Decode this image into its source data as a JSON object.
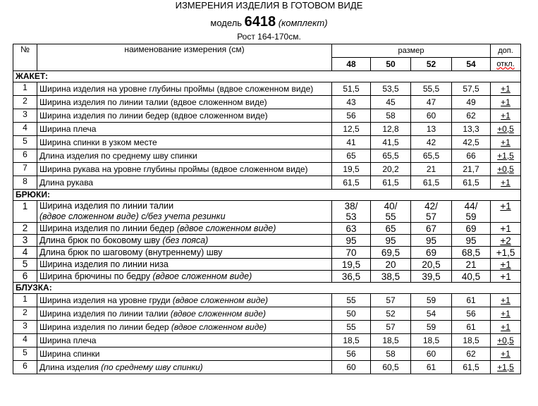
{
  "title": "ИЗМЕРЕНИЯ ИЗДЕЛИЯ В ГОТОВОМ ВИДЕ",
  "model_prefix": "модель",
  "model_number": "6418",
  "model_suffix": "(комплект)",
  "height": "Рост 164-170см.",
  "header": {
    "num": "№",
    "name": "наименование измерения (см)",
    "size": "размер",
    "sizes": [
      "48",
      "50",
      "52",
      "54"
    ],
    "tol1": "доп.",
    "tol2": "откл."
  },
  "sections": [
    {
      "title": "ЖАКЕТ:",
      "rows": [
        {
          "n": "1",
          "name": "Ширина изделия на уровне глубины проймы (вдвое сложенном виде)",
          "v": [
            "51,5",
            "53,5",
            "55,5",
            "57,5"
          ],
          "tol": "+1",
          "tol_underlined": true
        },
        {
          "n": "2",
          "name": "Ширина изделия по линии талии (вдвое сложенном виде)",
          "v": [
            "43",
            "45",
            "47",
            "49"
          ],
          "tol": "+1",
          "tol_underlined": true
        },
        {
          "n": "3",
          "name": "Ширина изделия по линии бедер (вдвое сложенном виде)",
          "v": [
            "56",
            "58",
            "60",
            "62"
          ],
          "tol": "+1",
          "tol_underlined": true
        },
        {
          "n": "4",
          "name": "Ширина плеча",
          "v": [
            "12,5",
            "12,8",
            "13",
            "13,3"
          ],
          "tol": "+0,5",
          "tol_underlined": true
        },
        {
          "n": "5",
          "name": "Ширина спинки в узком месте",
          "v": [
            "41",
            "41,5",
            "42",
            "42,5"
          ],
          "tol": "+1",
          "tol_underlined": true
        },
        {
          "n": "6",
          "name": "Длина изделия по среднему шву спинки",
          "v": [
            "65",
            "65,5",
            "65,5",
            "66"
          ],
          "tol": "+1,5",
          "tol_underlined": true
        },
        {
          "n": "7",
          "name": "Ширина рукава на уровне глубины проймы (вдвое сложенном виде)",
          "v": [
            "19,5",
            "20,2",
            "21",
            "21,7"
          ],
          "tol": "+0,5",
          "tol_underlined": true
        },
        {
          "n": "8",
          "name": "Длина рукава",
          "v": [
            "61,5",
            "61,5",
            "61,5",
            "61,5"
          ],
          "tol": "+1",
          "tol_underlined": true
        }
      ]
    },
    {
      "title": "БРЮКИ:",
      "rows": [
        {
          "n": "1",
          "name": "Ширина изделия по линии талии",
          "name_italic": "(вдвое сложенном виде) с/без учета резинки",
          "v": [
            "38/ 53",
            "40/ 55",
            "42/ 57",
            "44/ 59"
          ],
          "tol": "+1",
          "tol_underlined": true
        },
        {
          "n": "2",
          "name": "Ширина изделия по линии бедер",
          "name_italic": "(вдвое сложенном виде)",
          "v": [
            "63",
            "65",
            "67",
            "69"
          ],
          "tol": "+1",
          "tol_underlined": false
        },
        {
          "n": "3",
          "name": "Длина брюк по боковому шву",
          "name_italic": "(без пояса)",
          "v": [
            "95",
            "95",
            "95",
            "95"
          ],
          "tol": "+2",
          "tol_underlined": true
        },
        {
          "n": "4",
          "name": "Длина брюк по шаговому (внутреннему) шву",
          "v": [
            "70",
            "69,5",
            "69",
            "68,5"
          ],
          "tol": "+1,5",
          "tol_underlined": false
        },
        {
          "n": "5",
          "name": "Ширина изделия по линии низа",
          "v": [
            "19,5",
            "20",
            "20,5",
            "21"
          ],
          "tol": "+1",
          "tol_underlined": true
        },
        {
          "n": "6",
          "name": "Ширина брючины по бедру",
          "name_italic": "(вдвое сложенном виде)",
          "v": [
            "36,5",
            "38,5",
            "39,5",
            "40,5"
          ],
          "tol": "+1",
          "tol_underlined": false
        }
      ]
    },
    {
      "title": "БЛУЗКА:",
      "rows": [
        {
          "n": "1",
          "name": "Ширина изделия на уровне груди",
          "name_italic": "(вдвое сложенном виде)",
          "v": [
            "55",
            "57",
            "59",
            "61"
          ],
          "tol": "+1",
          "tol_underlined": true
        },
        {
          "n": "2",
          "name": "Ширина изделия по линии талии",
          "name_italic": "(вдвое сложенном виде)",
          "v": [
            "50",
            "52",
            "54",
            "56"
          ],
          "tol": "+1",
          "tol_underlined": true
        },
        {
          "n": "3",
          "name": "Ширина изделия по линии бедер",
          "name_italic": "(вдвое сложенном виде)",
          "v": [
            "55",
            "57",
            "59",
            "61"
          ],
          "tol": "+1",
          "tol_underlined": true
        },
        {
          "n": "4",
          "name": "Ширина плеча",
          "v": [
            "18,5",
            "18,5",
            "18,5",
            "18,5"
          ],
          "tol": "+0,5",
          "tol_underlined": true
        },
        {
          "n": "5",
          "name": "Ширина спинки",
          "v": [
            "56",
            "58",
            "60",
            "62"
          ],
          "tol": "+1",
          "tol_underlined": true
        },
        {
          "n": "6",
          "name": "Длина изделия",
          "name_italic": "(по среднему шву спинки)",
          "v": [
            "60",
            "60,5",
            "61",
            "61,5"
          ],
          "tol": "+1,5",
          "tol_underlined": true
        }
      ]
    }
  ]
}
